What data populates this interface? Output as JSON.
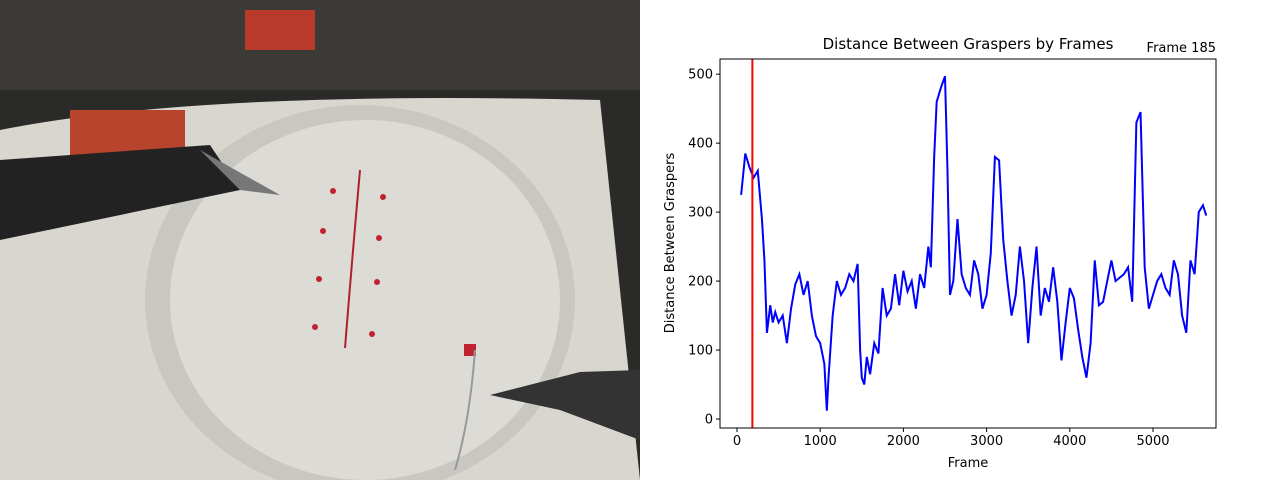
{
  "chart_data": {
    "type": "line",
    "title": "Distance Between Graspers by Frames",
    "xlabel": "Frame",
    "ylabel": "Distance Between Graspers",
    "annotation": {
      "x": 185,
      "label": "Frame 185",
      "color": "#ff0000"
    },
    "xlim": [
      -204,
      5757
    ],
    "ylim": [
      -13,
      522
    ],
    "xticks": [
      0,
      1000,
      2000,
      3000,
      4000,
      5000
    ],
    "yticks": [
      0,
      100,
      200,
      300,
      400,
      500
    ],
    "x": [
      50,
      100,
      150,
      200,
      250,
      300,
      330,
      360,
      400,
      430,
      460,
      500,
      550,
      600,
      650,
      700,
      750,
      800,
      850,
      900,
      950,
      1000,
      1050,
      1080,
      1100,
      1150,
      1200,
      1250,
      1300,
      1350,
      1400,
      1450,
      1480,
      1500,
      1530,
      1560,
      1600,
      1650,
      1700,
      1750,
      1800,
      1850,
      1900,
      1950,
      2000,
      2050,
      2100,
      2150,
      2200,
      2250,
      2300,
      2330,
      2370,
      2400,
      2450,
      2500,
      2530,
      2560,
      2600,
      2650,
      2700,
      2750,
      2800,
      2850,
      2900,
      2950,
      3000,
      3050,
      3100,
      3150,
      3200,
      3250,
      3300,
      3350,
      3400,
      3450,
      3500,
      3550,
      3600,
      3650,
      3700,
      3750,
      3800,
      3850,
      3900,
      3950,
      4000,
      4050,
      4100,
      4150,
      4200,
      4250,
      4300,
      4350,
      4400,
      4450,
      4500,
      4550,
      4600,
      4650,
      4700,
      4750,
      4800,
      4850,
      4900,
      4950,
      5000,
      5050,
      5100,
      5150,
      5200,
      5250,
      5300,
      5350,
      5400,
      5450,
      5500,
      5550,
      5600,
      5640
    ],
    "series": [
      {
        "name": "Distance",
        "color": "#0000ff",
        "values": [
          325,
          385,
          365,
          350,
          360,
          290,
          230,
          125,
          165,
          140,
          155,
          140,
          150,
          110,
          160,
          195,
          210,
          180,
          200,
          150,
          120,
          110,
          80,
          12,
          60,
          150,
          200,
          180,
          190,
          210,
          200,
          225,
          100,
          60,
          50,
          90,
          65,
          110,
          95,
          190,
          150,
          160,
          210,
          165,
          215,
          185,
          200,
          160,
          210,
          190,
          250,
          220,
          380,
          460,
          480,
          497,
          360,
          180,
          200,
          290,
          210,
          190,
          180,
          230,
          210,
          160,
          180,
          240,
          380,
          375,
          260,
          200,
          150,
          180,
          250,
          200,
          110,
          190,
          250,
          150,
          190,
          170,
          220,
          170,
          85,
          140,
          190,
          175,
          130,
          90,
          60,
          110,
          230,
          165,
          170,
          200,
          230,
          200,
          205,
          210,
          220,
          170,
          430,
          445,
          220,
          160,
          180,
          200,
          210,
          190,
          180,
          230,
          210,
          150,
          125,
          230,
          210,
          300,
          310,
          295
        ]
      }
    ]
  }
}
